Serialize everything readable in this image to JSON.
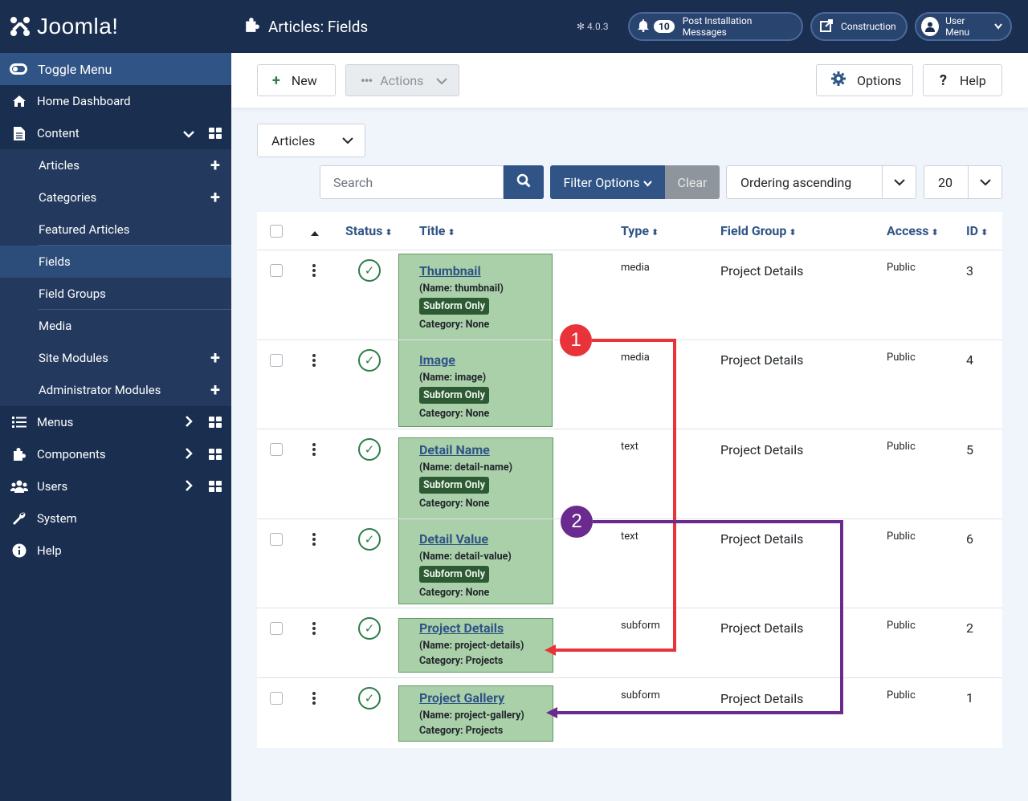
{
  "brand": {
    "logo_text": "Joomla!"
  },
  "sidebar": {
    "toggle_label": "Toggle Menu",
    "home": "Home Dashboard",
    "content": "Content",
    "content_items": [
      {
        "label": "Articles",
        "plus": true
      },
      {
        "label": "Categories",
        "plus": true
      },
      {
        "label": "Featured Articles",
        "plus": false
      },
      {
        "label": "Fields",
        "plus": false,
        "active": true
      },
      {
        "label": "Field Groups",
        "plus": false
      },
      {
        "label": "Media",
        "plus": false
      },
      {
        "label": "Site Modules",
        "plus": true
      },
      {
        "label": "Administrator Modules",
        "plus": true
      }
    ],
    "menus": "Menus",
    "components": "Components",
    "users": "Users",
    "system": "System",
    "help": "Help"
  },
  "header": {
    "title": "Articles: Fields",
    "version": "4.0.3",
    "notif_count": "10",
    "post_install": "Post Installation Messages",
    "site_name": "Construction",
    "user_menu": "User Menu"
  },
  "toolbar": {
    "new_label": "New",
    "actions_label": "Actions",
    "options_label": "Options",
    "help_label": "Help"
  },
  "filters": {
    "context": "Articles",
    "search_placeholder": "Search",
    "filter_options": "Filter Options",
    "clear": "Clear",
    "ordering": "Ordering ascending",
    "limit": "20"
  },
  "table": {
    "headers": {
      "status": "Status",
      "title": "Title",
      "type": "Type",
      "field_group": "Field Group",
      "access": "Access",
      "id": "ID"
    },
    "rows": [
      {
        "title": "Thumbnail",
        "name": "(Name: thumbnail)",
        "badge": "Subform Only",
        "category": "Category: None",
        "type": "media",
        "group": "Project Details",
        "access": "Public",
        "id": "3"
      },
      {
        "title": "Image",
        "name": "(Name: image)",
        "badge": "Subform Only",
        "category": "Category: None",
        "type": "media",
        "group": "Project Details",
        "access": "Public",
        "id": "4"
      },
      {
        "title": "Detail Name",
        "name": "(Name: detail-name)",
        "badge": "Subform Only",
        "category": "Category: None",
        "type": "text",
        "group": "Project Details",
        "access": "Public",
        "id": "5"
      },
      {
        "title": "Detail Value",
        "name": "(Name: detail-value)",
        "badge": "Subform Only",
        "category": "Category: None",
        "type": "text",
        "group": "Project Details",
        "access": "Public",
        "id": "6"
      },
      {
        "title": "Project Details",
        "name": "(Name: project-details)",
        "badge": "",
        "category": "Category: Projects",
        "type": "subform",
        "group": "Project Details",
        "access": "Public",
        "id": "2"
      },
      {
        "title": "Project Gallery",
        "name": "(Name: project-gallery)",
        "badge": "",
        "category": "Category: Projects",
        "type": "subform",
        "group": "Project Details",
        "access": "Public",
        "id": "1"
      }
    ]
  },
  "annotations": {
    "marker1": "1",
    "marker2": "2",
    "color1": "#e8333b",
    "color2": "#6a2a8e"
  }
}
